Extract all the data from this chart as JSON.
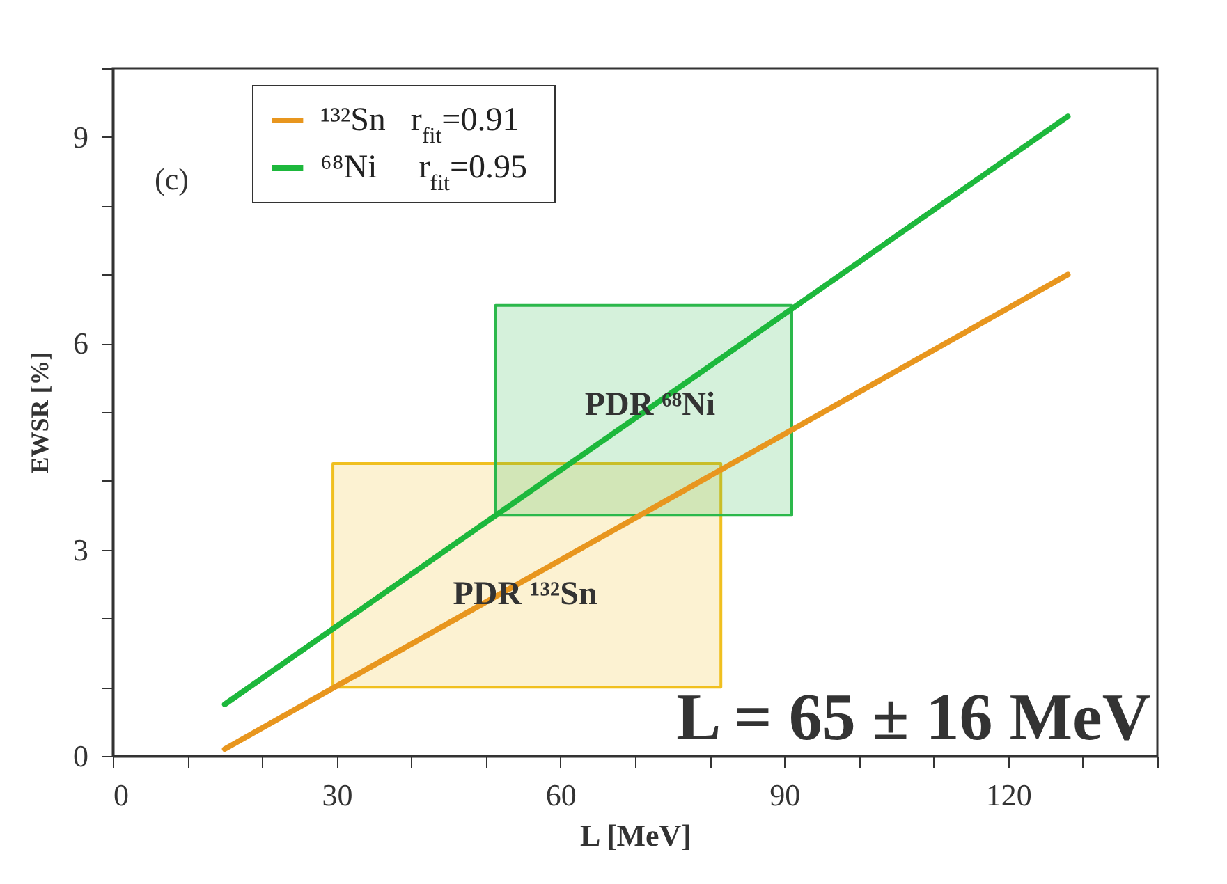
{
  "chart_data": {
    "type": "line",
    "xlabel": "L  [MeV]",
    "ylabel": "EWSR [%]",
    "xlim": [
      0,
      140
    ],
    "ylim": [
      0,
      10
    ],
    "xticks": [
      0,
      {
        "value": 10,
        "label": null
      },
      {
        "value": 20,
        "label": null
      },
      30,
      {
        "value": 40,
        "label": null
      },
      {
        "value": 50,
        "label": null
      },
      60,
      {
        "value": 70,
        "label": null
      },
      {
        "value": 80,
        "label": null
      },
      90,
      {
        "value": 100,
        "label": null
      },
      {
        "value": 110,
        "label": null
      },
      120,
      {
        "value": 130,
        "label": null
      },
      {
        "value": 140,
        "label": null
      }
    ],
    "yticks": [
      0,
      {
        "value": 1,
        "label": null
      },
      {
        "value": 2,
        "label": null
      },
      3,
      {
        "value": 4,
        "label": null
      },
      {
        "value": 5,
        "label": null
      },
      6,
      {
        "value": 7,
        "label": null
      },
      {
        "value": 8,
        "label": null
      },
      9,
      {
        "value": 10,
        "label": null
      }
    ],
    "legend": "top left",
    "grid": false,
    "series": [
      {
        "type": "area",
        "color": "#f0c020",
        "x": [
          29.5,
          29.5,
          81.5,
          81.5,
          29.5
        ],
        "values": [
          1.0,
          4.25,
          4.25,
          1.0,
          1.0
        ]
      },
      {
        "type": "area",
        "color": "#2cb84c",
        "x": [
          51.3,
          51.3,
          91,
          91,
          51.3
        ],
        "values": [
          3.5,
          6.55,
          6.55,
          3.5,
          3.5
        ]
      },
      {
        "name": "¹³²Sn   r$_{fit}$=0.91",
        "color": "#e8961e",
        "x": [
          15,
          128
        ],
        "values": [
          0.1,
          7.0
        ]
      },
      {
        "name": "⁶⁸Ni     r$_{fit}$=0.95",
        "color": "#1db83c",
        "x": [
          15,
          128
        ],
        "values": [
          0.75,
          9.3
        ]
      }
    ],
    "annotations": [
      "(c)",
      {
        "text": "PDR ⁶⁸Ni",
        "x": 72,
        "y": 5.1
      },
      "PDR ¹³²Sn",
      "L = 65 ± 16 MeV"
    ]
  }
}
